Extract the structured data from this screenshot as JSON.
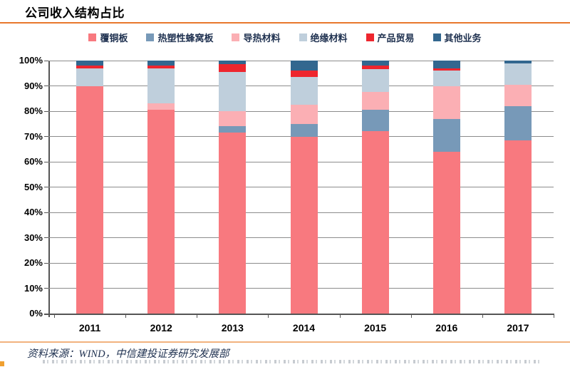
{
  "title": "公司收入结构占比",
  "source_note": "资料来源：WIND，中信建投证券研究发展部",
  "colors": {
    "accent_line_top": "#E8772D",
    "accent_line_bottom": "#F2B27E",
    "axis": "#555555",
    "gridline": "#8C8C8C",
    "legend_text": "#1F3150"
  },
  "chart_data": {
    "type": "bar",
    "stacked": true,
    "stacked_100": true,
    "title": "公司收入结构占比",
    "xlabel": "",
    "ylabel": "",
    "ylim": [
      0,
      100
    ],
    "grid": true,
    "legend_position": "top",
    "categories": [
      "2011",
      "2012",
      "2013",
      "2014",
      "2015",
      "2016",
      "2017"
    ],
    "y_ticks": [
      "0%",
      "10%",
      "20%",
      "30%",
      "40%",
      "50%",
      "60%",
      "70%",
      "80%",
      "90%",
      "100%"
    ],
    "series": [
      {
        "name": "覆铜板",
        "color": "#F8797F",
        "values": [
          90,
          80.5,
          71.5,
          70,
          72,
          64,
          68.5
        ]
      },
      {
        "name": "热塑性蜂窝板",
        "color": "#7799B8",
        "values": [
          0,
          0,
          2.5,
          5,
          8.5,
          13,
          13.5
        ]
      },
      {
        "name": "导热材料",
        "color": "#FBAFB4",
        "values": [
          0,
          2.5,
          6,
          7.5,
          7,
          13,
          8.5
        ]
      },
      {
        "name": "绝缘材料",
        "color": "#BFCFDC",
        "values": [
          7,
          14,
          15.5,
          11,
          9,
          6,
          8.5
        ]
      },
      {
        "name": "产品贸易",
        "color": "#EE262E",
        "values": [
          1,
          1,
          3,
          2.5,
          1.5,
          1,
          0
        ]
      },
      {
        "name": "其他业务",
        "color": "#33678F",
        "values": [
          2,
          2,
          1.5,
          4,
          2,
          3,
          1
        ]
      }
    ]
  }
}
